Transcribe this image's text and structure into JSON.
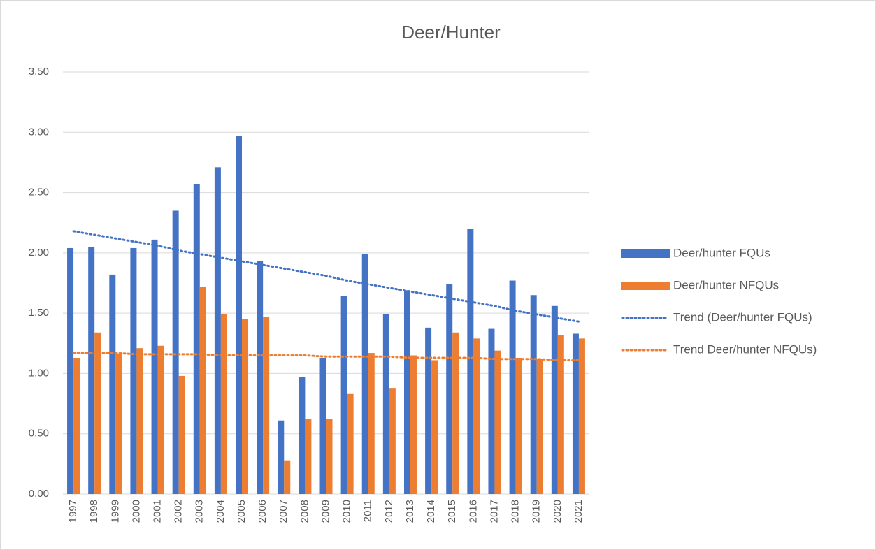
{
  "chart_data": {
    "type": "bar",
    "title": "Deer/Hunter",
    "categories": [
      "1997",
      "1998",
      "1999",
      "2000",
      "2001",
      "2002",
      "2003",
      "2004",
      "2005",
      "2006",
      "2007",
      "2008",
      "2009",
      "2010",
      "2011",
      "2012",
      "2013",
      "2014",
      "2015",
      "2016",
      "2017",
      "2018",
      "2019",
      "2020",
      "2021"
    ],
    "series": [
      {
        "name": "Deer/hunter FQUs",
        "color": "#4472c4",
        "kind": "bar",
        "values": [
          2.04,
          2.05,
          1.82,
          2.04,
          2.11,
          2.35,
          2.57,
          2.71,
          2.97,
          1.93,
          0.61,
          0.97,
          1.13,
          1.64,
          1.99,
          1.49,
          1.69,
          1.38,
          1.74,
          2.2,
          1.37,
          1.77,
          1.65,
          1.56,
          1.33
        ]
      },
      {
        "name": "Deer/hunter NFQUs",
        "color": "#ed7d31",
        "kind": "bar",
        "values": [
          1.13,
          1.34,
          1.16,
          1.21,
          1.23,
          0.98,
          1.72,
          1.49,
          1.45,
          1.47,
          0.28,
          0.62,
          0.62,
          0.83,
          1.17,
          0.88,
          1.15,
          1.11,
          1.34,
          1.29,
          1.19,
          1.13,
          1.12,
          1.32,
          1.29
        ]
      },
      {
        "name": "Trend (Deer/hunter FQUs)",
        "color": "#4472c4",
        "kind": "trend",
        "values": [
          2.18,
          2.15,
          2.12,
          2.09,
          2.06,
          2.02,
          1.99,
          1.96,
          1.93,
          1.9,
          1.87,
          1.84,
          1.81,
          1.77,
          1.74,
          1.71,
          1.68,
          1.65,
          1.62,
          1.59,
          1.56,
          1.52,
          1.49,
          1.46,
          1.43
        ]
      },
      {
        "name": "Trend Deer/hunter NFQUs)",
        "color": "#ed7d31",
        "kind": "trend",
        "values": [
          1.17,
          1.17,
          1.17,
          1.16,
          1.16,
          1.16,
          1.16,
          1.15,
          1.15,
          1.15,
          1.15,
          1.15,
          1.14,
          1.14,
          1.14,
          1.14,
          1.13,
          1.13,
          1.13,
          1.13,
          1.12,
          1.12,
          1.12,
          1.11,
          1.11
        ]
      }
    ],
    "ylim": [
      0,
      3.5
    ],
    "yticks": [
      {
        "value": 0,
        "label": "0.00"
      },
      {
        "value": 0.5,
        "label": "0.50"
      },
      {
        "value": 1,
        "label": "1.00"
      },
      {
        "value": 1.5,
        "label": "1.50"
      },
      {
        "value": 2,
        "label": "2.00"
      },
      {
        "value": 2.5,
        "label": "2.50"
      },
      {
        "value": 3,
        "label": "3.00"
      },
      {
        "value": 3.5,
        "label": "3.50"
      }
    ],
    "grid": true,
    "legend": "right"
  }
}
